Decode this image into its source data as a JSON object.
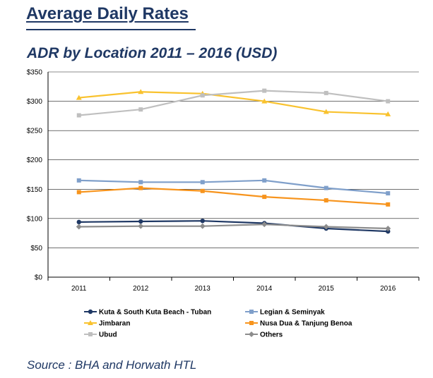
{
  "header": {
    "title": "Average Daily Rates"
  },
  "footer": {
    "source": "Source : BHA and Horwath HTL"
  },
  "chart_data": {
    "type": "line",
    "title": "ADR by Location 2011 – 2016 (USD)",
    "x": [
      "2011",
      "2012",
      "2013",
      "2014",
      "2015",
      "2016"
    ],
    "ylim": [
      0,
      350
    ],
    "yticks": [
      0,
      50,
      100,
      150,
      200,
      250,
      300,
      350
    ],
    "ytick_labels": [
      "$0",
      "$50",
      "$100",
      "$150",
      "$200",
      "$250",
      "$300",
      "$350"
    ],
    "grid": true,
    "legend_position": "bottom",
    "series": [
      {
        "name": "Kuta & South Kuta Beach - Tuban",
        "color": "#1f3864",
        "marker": "circle",
        "values": [
          94,
          95,
          96,
          92,
          83,
          78
        ]
      },
      {
        "name": "Legian & Seminyak",
        "color": "#7f9fca",
        "marker": "square",
        "values": [
          165,
          162,
          162,
          165,
          152,
          143
        ]
      },
      {
        "name": "Jimbaran",
        "color": "#f9c22e",
        "marker": "triangle",
        "values": [
          306,
          316,
          313,
          300,
          282,
          278
        ]
      },
      {
        "name": "Nusa Dua & Tanjung Benoa",
        "color": "#f7941d",
        "marker": "square",
        "values": [
          145,
          152,
          147,
          137,
          131,
          124
        ]
      },
      {
        "name": "Ubud",
        "color": "#bfbfbf",
        "marker": "square",
        "values": [
          276,
          286,
          310,
          318,
          314,
          300
        ]
      },
      {
        "name": "Others",
        "color": "#8c8c8c",
        "marker": "diamond",
        "values": [
          86,
          87,
          87,
          90,
          86,
          83
        ]
      }
    ]
  }
}
